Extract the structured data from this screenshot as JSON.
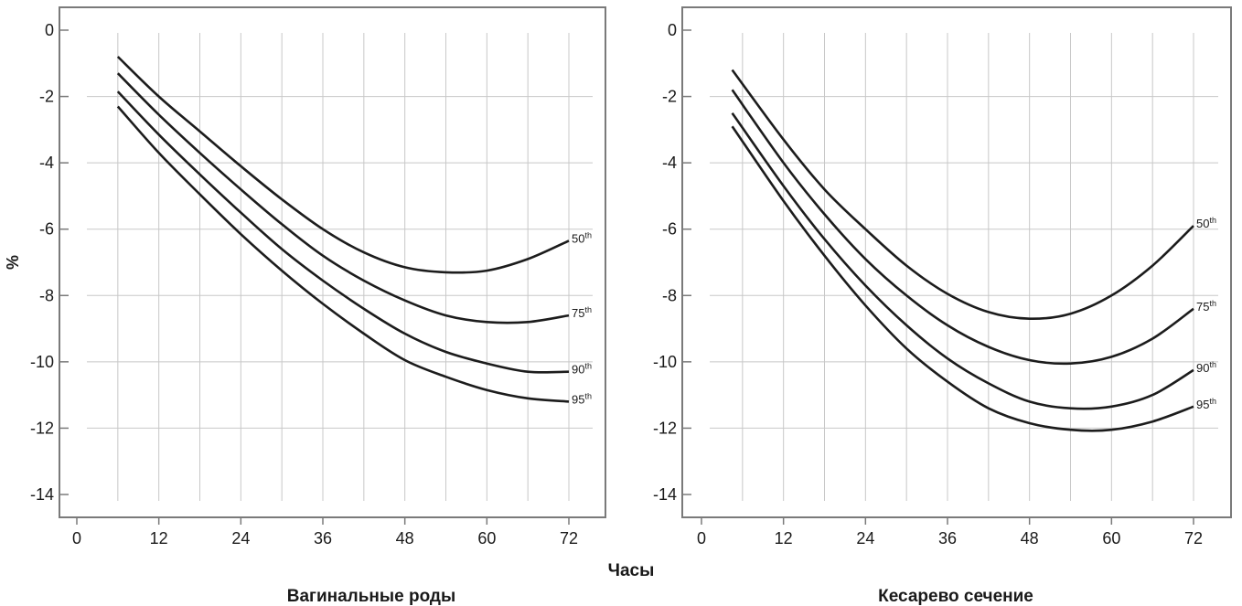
{
  "shared": {
    "ylabel": "%",
    "xlabel": "Часы"
  },
  "chart_data": [
    {
      "type": "line",
      "title": "Вагинальные роды",
      "xlabel": "Часы",
      "ylabel": "%",
      "xlim": [
        0,
        72
      ],
      "ylim": [
        -14,
        0
      ],
      "x_ticks": [
        0,
        12,
        24,
        36,
        48,
        60,
        72
      ],
      "y_ticks": [
        0,
        -2,
        -4,
        -6,
        -8,
        -10,
        -12,
        -14
      ],
      "grid": "vertical every 6 h, horizontal every 2 %",
      "series": [
        {
          "name": "50th",
          "x": [
            6,
            12,
            18,
            24,
            30,
            36,
            42,
            48,
            54,
            60,
            66,
            72
          ],
          "values": [
            -0.8,
            -2.0,
            -3.05,
            -4.1,
            -5.1,
            -6.0,
            -6.7,
            -7.15,
            -7.3,
            -7.25,
            -6.9,
            -6.35
          ]
        },
        {
          "name": "75th",
          "x": [
            6,
            12,
            18,
            24,
            30,
            36,
            42,
            48,
            54,
            60,
            66,
            72
          ],
          "values": [
            -1.3,
            -2.55,
            -3.7,
            -4.8,
            -5.85,
            -6.8,
            -7.55,
            -8.15,
            -8.6,
            -8.8,
            -8.8,
            -8.6
          ]
        },
        {
          "name": "90th",
          "x": [
            6,
            12,
            18,
            24,
            30,
            36,
            42,
            48,
            54,
            60,
            66,
            72
          ],
          "values": [
            -1.85,
            -3.15,
            -4.35,
            -5.5,
            -6.6,
            -7.55,
            -8.4,
            -9.15,
            -9.7,
            -10.05,
            -10.3,
            -10.3
          ]
        },
        {
          "name": "95th",
          "x": [
            6,
            12,
            18,
            24,
            30,
            36,
            42,
            48,
            54,
            60,
            66,
            72
          ],
          "values": [
            -2.3,
            -3.7,
            -4.95,
            -6.15,
            -7.25,
            -8.25,
            -9.15,
            -9.95,
            -10.45,
            -10.85,
            -11.1,
            -11.2
          ]
        }
      ]
    },
    {
      "type": "line",
      "title": "Кесарево сечение",
      "xlabel": "Часы",
      "ylabel": "",
      "xlim": [
        0,
        72
      ],
      "ylim": [
        -14,
        0
      ],
      "x_ticks": [
        0,
        12,
        24,
        36,
        48,
        60,
        72
      ],
      "y_ticks": [
        0,
        -2,
        -4,
        -6,
        -8,
        -10,
        -12,
        -14
      ],
      "grid": "vertical every 6 h, horizontal every 2 %",
      "series": [
        {
          "name": "50th",
          "x": [
            4.5,
            12,
            18,
            24,
            30,
            36,
            42,
            48,
            54,
            60,
            66,
            72
          ],
          "values": [
            -1.2,
            -3.3,
            -4.8,
            -6.0,
            -7.1,
            -7.95,
            -8.5,
            -8.7,
            -8.55,
            -8.0,
            -7.1,
            -5.9
          ]
        },
        {
          "name": "75th",
          "x": [
            4.5,
            12,
            18,
            24,
            30,
            36,
            42,
            48,
            54,
            60,
            66,
            72
          ],
          "values": [
            -1.8,
            -4.0,
            -5.55,
            -6.9,
            -8.0,
            -8.9,
            -9.55,
            -9.95,
            -10.05,
            -9.85,
            -9.3,
            -8.4
          ]
        },
        {
          "name": "90th",
          "x": [
            4.5,
            12,
            18,
            24,
            30,
            36,
            42,
            48,
            54,
            60,
            66,
            72
          ],
          "values": [
            -2.5,
            -4.7,
            -6.3,
            -7.7,
            -8.9,
            -9.9,
            -10.65,
            -11.2,
            -11.4,
            -11.35,
            -11.0,
            -10.25
          ]
        },
        {
          "name": "95th",
          "x": [
            4.5,
            12,
            18,
            24,
            30,
            36,
            42,
            48,
            54,
            60,
            66,
            72
          ],
          "values": [
            -2.9,
            -5.15,
            -6.8,
            -8.3,
            -9.6,
            -10.6,
            -11.4,
            -11.85,
            -12.05,
            -12.05,
            -11.8,
            -11.35
          ]
        }
      ]
    }
  ]
}
